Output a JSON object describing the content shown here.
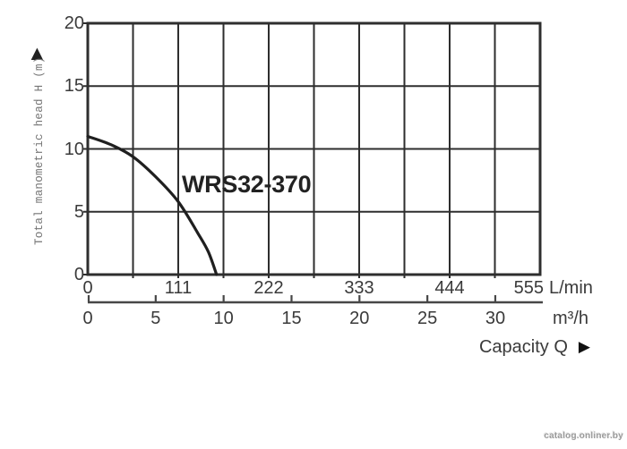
{
  "watermark": "catalog.onliner.by",
  "icons": {
    "y_axis_arrow": "▲",
    "capacity_arrow": "▶"
  },
  "chart_data": {
    "type": "line",
    "title": "WRS32-370",
    "y_axis": {
      "label": "Total manometric head H (m)",
      "range": [
        0,
        20
      ],
      "ticks": [
        20,
        15,
        10,
        5,
        0
      ],
      "grid_step": 5
    },
    "x_axis_primary": {
      "unit": "L/min",
      "range": [
        0,
        555
      ],
      "ticks": [
        0,
        111,
        222,
        333,
        444,
        555
      ],
      "gridline_step": 55.5
    },
    "x_axis_secondary": {
      "unit": "m³/h",
      "ticks": [
        0,
        5,
        10,
        15,
        20,
        25,
        30
      ],
      "lmin_per_unit": 16.6667
    },
    "x_label": "Capacity Q",
    "grid": true,
    "legend": "none",
    "series": [
      {
        "name": "WRS32-370",
        "points_lmin_m": [
          [
            0,
            11.0
          ],
          [
            28,
            10.35
          ],
          [
            55,
            9.4
          ],
          [
            83,
            7.8
          ],
          [
            111,
            5.8
          ],
          [
            135,
            3.3
          ],
          [
            148,
            1.8
          ],
          [
            158,
            0
          ]
        ]
      }
    ],
    "colors": {
      "curve": "#1f1f1f",
      "grid": "#2e2e2e",
      "text": "#3a3a3a",
      "axis_label_text": "#757575",
      "watermark": "#9a9a9a"
    }
  }
}
